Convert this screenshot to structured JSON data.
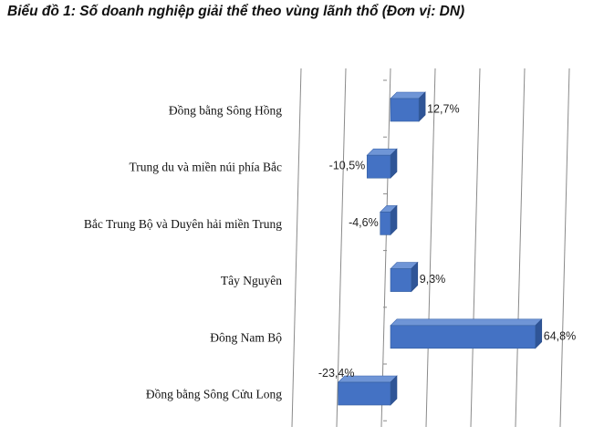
{
  "chart_data": {
    "type": "bar",
    "orientation": "horizontal",
    "style": "3d",
    "title": "Biểu đồ 1: Số doanh nghiệp giải thể theo vùng lãnh thổ (Đơn vị: DN)",
    "xlabel": "",
    "ylabel": "",
    "categories": [
      "Đồng bằng Sông Hồng",
      "Trung du và miền núi phía Bắc",
      "Bắc Trung Bộ và Duyên hải miền Trung",
      "Tây Nguyên",
      "Đông Nam Bộ",
      "Đồng bằng Sông Cửu Long"
    ],
    "values": [
      12.7,
      -10.5,
      -4.6,
      9.3,
      64.8,
      -23.4
    ],
    "value_labels": [
      "12,7%",
      "-10,5%",
      "-4,6%",
      "9,3%",
      "64,8%",
      "-23,4%"
    ],
    "xlim": [
      -40,
      100
    ],
    "grid": true,
    "legend": "none",
    "bar_color": "#4472C4"
  }
}
